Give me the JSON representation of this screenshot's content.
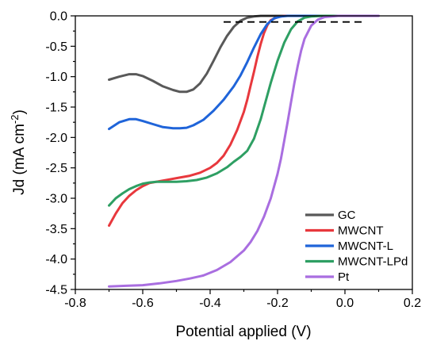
{
  "chart_data": {
    "type": "line",
    "title": "",
    "xlabel": "Potential applied (V)",
    "ylabel": {
      "base": "Jd (mA cm",
      "sup": "-2",
      "end": ")"
    },
    "xlim": [
      -0.8,
      0.2
    ],
    "ylim": [
      -4.5,
      0.0
    ],
    "x_ticks": [
      -0.8,
      -0.6,
      -0.4,
      -0.2,
      0.0,
      0.2
    ],
    "x_tick_labels": [
      "-0.8",
      "-0.6",
      "-0.4",
      "-0.2",
      "0.0",
      "0.2"
    ],
    "y_ticks": [
      0.0,
      -0.5,
      -1.0,
      -1.5,
      -2.0,
      -2.5,
      -3.0,
      -3.5,
      -4.0,
      -4.5
    ],
    "y_tick_labels": [
      "0.0",
      "-0.5",
      "-1.0",
      "-1.5",
      "-2.0",
      "-2.5",
      "-3.0",
      "-3.5",
      "-4.0",
      "-4.5"
    ],
    "grid": false,
    "legend_position": "bottom-right",
    "reference_line": {
      "style": "dashed",
      "color": "#000000",
      "x": [
        -0.36,
        0.05
      ],
      "y": [
        -0.1,
        -0.1
      ]
    },
    "series": [
      {
        "name": "GC",
        "color": "#595959",
        "x": [
          -0.7,
          -0.67,
          -0.64,
          -0.62,
          -0.6,
          -0.57,
          -0.54,
          -0.51,
          -0.49,
          -0.47,
          -0.45,
          -0.43,
          -0.41,
          -0.39,
          -0.37,
          -0.35,
          -0.33,
          -0.31,
          -0.29,
          -0.27,
          -0.25,
          -0.22,
          -0.18
        ],
        "y": [
          -1.05,
          -1.0,
          -0.96,
          -0.96,
          -0.99,
          -1.07,
          -1.16,
          -1.22,
          -1.25,
          -1.25,
          -1.21,
          -1.11,
          -0.95,
          -0.74,
          -0.52,
          -0.33,
          -0.18,
          -0.08,
          -0.03,
          -0.01,
          0.0,
          0.0,
          0.0
        ]
      },
      {
        "name": "MWCNT",
        "color": "#e8383d",
        "x": [
          -0.7,
          -0.68,
          -0.66,
          -0.64,
          -0.62,
          -0.6,
          -0.58,
          -0.55,
          -0.52,
          -0.49,
          -0.46,
          -0.43,
          -0.4,
          -0.38,
          -0.36,
          -0.34,
          -0.32,
          -0.3,
          -0.29,
          -0.28,
          -0.27,
          -0.26,
          -0.25,
          -0.24,
          -0.23,
          -0.22,
          -0.2,
          -0.18,
          -0.15,
          -0.1,
          -0.05
        ],
        "y": [
          -3.45,
          -3.25,
          -3.08,
          -2.96,
          -2.87,
          -2.8,
          -2.75,
          -2.72,
          -2.69,
          -2.66,
          -2.63,
          -2.58,
          -2.5,
          -2.42,
          -2.3,
          -2.12,
          -1.88,
          -1.58,
          -1.38,
          -1.15,
          -0.92,
          -0.68,
          -0.46,
          -0.28,
          -0.15,
          -0.07,
          -0.02,
          0.0,
          0.0,
          0.0,
          0.0
        ]
      },
      {
        "name": "MWCNT-L",
        "color": "#1f64d9",
        "x": [
          -0.7,
          -0.67,
          -0.64,
          -0.62,
          -0.6,
          -0.57,
          -0.54,
          -0.51,
          -0.49,
          -0.47,
          -0.45,
          -0.42,
          -0.39,
          -0.36,
          -0.33,
          -0.31,
          -0.29,
          -0.27,
          -0.25,
          -0.23,
          -0.21,
          -0.19,
          -0.17,
          -0.15,
          -0.12,
          -0.08,
          -0.03
        ],
        "y": [
          -1.86,
          -1.75,
          -1.7,
          -1.7,
          -1.73,
          -1.78,
          -1.83,
          -1.85,
          -1.85,
          -1.84,
          -1.8,
          -1.71,
          -1.56,
          -1.38,
          -1.16,
          -0.98,
          -0.76,
          -0.52,
          -0.3,
          -0.13,
          -0.04,
          -0.01,
          0.0,
          0.0,
          0.0,
          0.0,
          0.0
        ]
      },
      {
        "name": "MWCNT-LPd",
        "color": "#2e9f63",
        "x": [
          -0.7,
          -0.68,
          -0.66,
          -0.64,
          -0.62,
          -0.6,
          -0.58,
          -0.56,
          -0.53,
          -0.5,
          -0.47,
          -0.44,
          -0.41,
          -0.38,
          -0.35,
          -0.33,
          -0.31,
          -0.29,
          -0.27,
          -0.25,
          -0.24,
          -0.22,
          -0.2,
          -0.18,
          -0.16,
          -0.14,
          -0.12,
          -0.1,
          -0.07,
          -0.03,
          0.0
        ],
        "y": [
          -3.12,
          -3.0,
          -2.92,
          -2.85,
          -2.8,
          -2.76,
          -2.74,
          -2.73,
          -2.73,
          -2.73,
          -2.72,
          -2.7,
          -2.66,
          -2.59,
          -2.49,
          -2.4,
          -2.32,
          -2.22,
          -2.02,
          -1.7,
          -1.5,
          -1.1,
          -0.74,
          -0.44,
          -0.22,
          -0.09,
          -0.03,
          -0.01,
          0.0,
          0.0,
          0.0
        ]
      },
      {
        "name": "Pt",
        "color": "#a96ee0",
        "x": [
          -0.7,
          -0.65,
          -0.6,
          -0.55,
          -0.5,
          -0.46,
          -0.42,
          -0.38,
          -0.34,
          -0.3,
          -0.28,
          -0.26,
          -0.24,
          -0.22,
          -0.2,
          -0.19,
          -0.18,
          -0.17,
          -0.16,
          -0.15,
          -0.14,
          -0.13,
          -0.12,
          -0.1,
          -0.08,
          -0.06,
          -0.04,
          -0.02,
          0.0,
          0.03,
          0.06,
          0.1
        ],
        "y": [
          -4.45,
          -4.44,
          -4.43,
          -4.4,
          -4.36,
          -4.32,
          -4.27,
          -4.18,
          -4.05,
          -3.86,
          -3.72,
          -3.54,
          -3.3,
          -3.0,
          -2.6,
          -2.35,
          -2.05,
          -1.74,
          -1.42,
          -1.1,
          -0.82,
          -0.57,
          -0.38,
          -0.16,
          -0.06,
          -0.02,
          -0.01,
          0.0,
          0.0,
          0.0,
          0.0,
          0.0
        ]
      }
    ]
  }
}
